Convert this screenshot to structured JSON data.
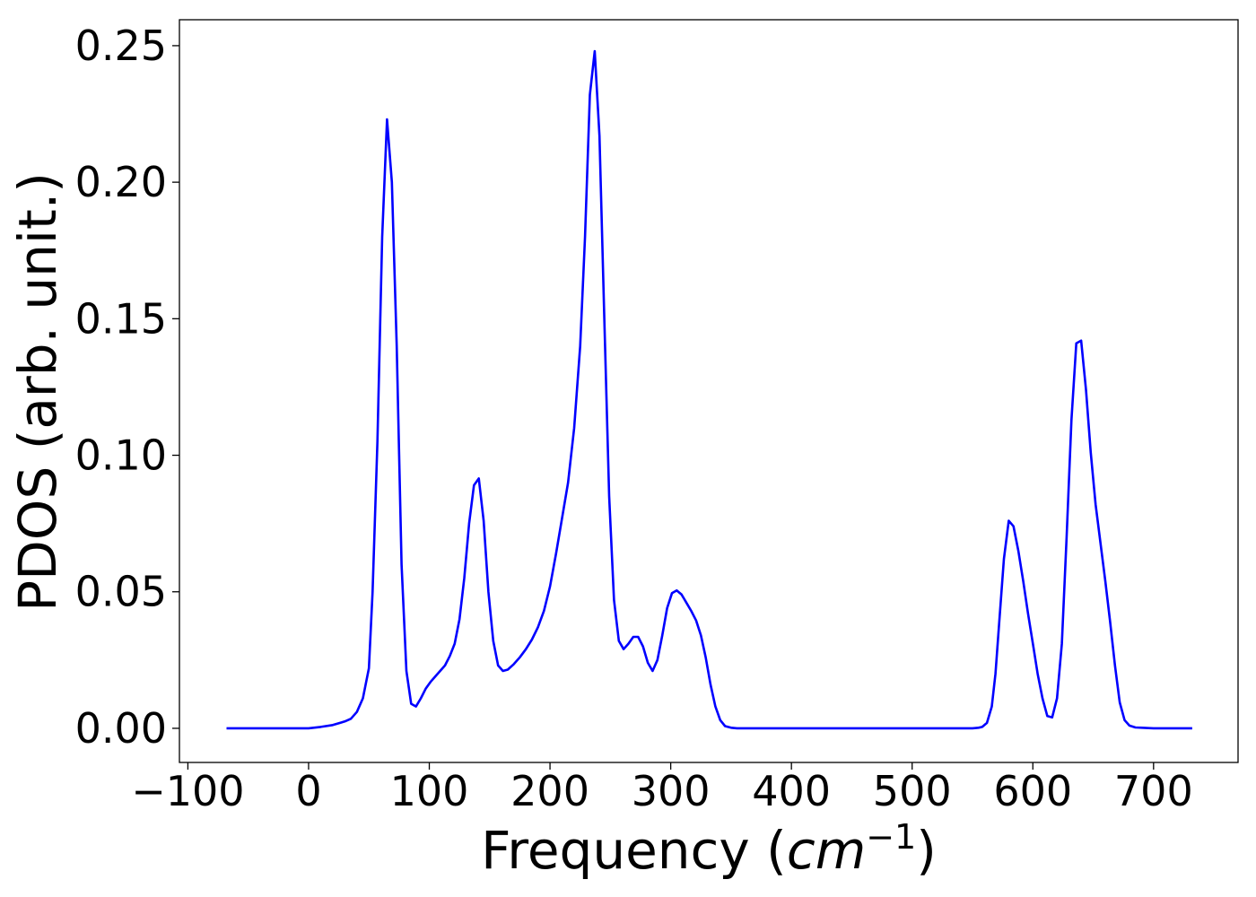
{
  "chart_data": {
    "type": "line",
    "title": "",
    "xlabel": {
      "main": "Frequency (",
      "var": "cm",
      "sup": "−1",
      "close": ")"
    },
    "ylabel": "PDOS (arb. unit.)",
    "xlim": [
      -107,
      770
    ],
    "ylim": [
      -0.0125,
      0.2595
    ],
    "xticks": [
      -100,
      0,
      100,
      200,
      300,
      400,
      500,
      600,
      700
    ],
    "xtick_labels": [
      "−100",
      "0",
      "100",
      "200",
      "300",
      "400",
      "500",
      "600",
      "700"
    ],
    "yticks": [
      0.0,
      0.05,
      0.1,
      0.15,
      0.2,
      0.25
    ],
    "ytick_labels": [
      "0.00",
      "0.05",
      "0.10",
      "0.15",
      "0.20",
      "0.25"
    ],
    "grid": false,
    "legend": "none",
    "series": [
      {
        "color": "#0000ff",
        "x": [
          -68,
          0,
          10,
          20,
          30,
          35,
          40,
          45,
          50,
          53,
          57,
          61,
          65,
          69,
          73,
          77,
          81,
          85,
          89,
          93,
          97,
          101,
          105,
          109,
          113,
          117,
          121,
          125,
          129,
          133,
          137,
          141,
          145,
          149,
          153,
          157,
          161,
          165,
          170,
          175,
          180,
          185,
          190,
          195,
          200,
          205,
          210,
          215,
          220,
          225,
          229,
          233,
          237,
          241,
          245,
          249,
          253,
          257,
          261,
          265,
          269,
          273,
          277,
          281,
          285,
          289,
          293,
          297,
          301,
          305,
          309,
          313,
          317,
          321,
          325,
          329,
          333,
          337,
          341,
          345,
          350,
          355,
          360,
          400,
          500,
          550,
          555,
          558,
          562,
          566,
          569,
          572,
          576,
          580,
          584,
          588,
          592,
          596,
          600,
          604,
          608,
          612,
          616,
          620,
          624,
          628,
          632,
          636,
          640,
          644,
          648,
          652,
          656,
          660,
          664,
          668,
          672,
          676,
          680,
          685,
          700,
          732
        ],
        "y": [
          0.0,
          0.0,
          0.0005,
          0.0012,
          0.0025,
          0.0035,
          0.006,
          0.011,
          0.022,
          0.05,
          0.105,
          0.18,
          0.223,
          0.2,
          0.14,
          0.06,
          0.021,
          0.009,
          0.008,
          0.011,
          0.0145,
          0.017,
          0.019,
          0.021,
          0.023,
          0.0265,
          0.031,
          0.04,
          0.055,
          0.075,
          0.089,
          0.0915,
          0.076,
          0.05,
          0.032,
          0.023,
          0.021,
          0.0215,
          0.0235,
          0.026,
          0.029,
          0.0325,
          0.037,
          0.043,
          0.052,
          0.064,
          0.077,
          0.09,
          0.11,
          0.14,
          0.18,
          0.232,
          0.248,
          0.217,
          0.15,
          0.085,
          0.047,
          0.032,
          0.029,
          0.031,
          0.0335,
          0.0335,
          0.03,
          0.024,
          0.021,
          0.025,
          0.034,
          0.044,
          0.0495,
          0.0505,
          0.049,
          0.046,
          0.043,
          0.0395,
          0.034,
          0.026,
          0.016,
          0.008,
          0.003,
          0.0008,
          0.0002,
          0.0,
          0.0,
          0.0,
          0.0,
          0.0,
          0.0002,
          0.0005,
          0.002,
          0.008,
          0.02,
          0.038,
          0.062,
          0.076,
          0.074,
          0.065,
          0.054,
          0.042,
          0.031,
          0.02,
          0.011,
          0.0045,
          0.004,
          0.011,
          0.031,
          0.07,
          0.113,
          0.141,
          0.142,
          0.124,
          0.101,
          0.082,
          0.068,
          0.054,
          0.039,
          0.023,
          0.0095,
          0.003,
          0.001,
          0.0003,
          0.0,
          0.0
        ]
      }
    ]
  }
}
